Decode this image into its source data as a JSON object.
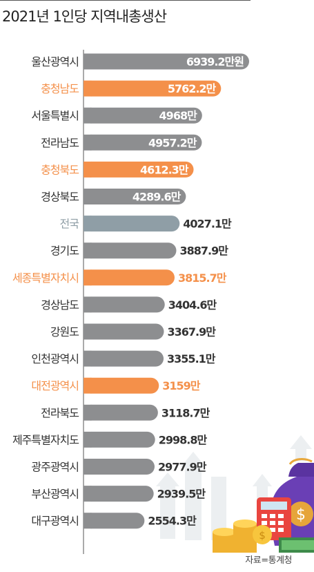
{
  "title": "2021년 1인당 지역내총생산",
  "source": "자료=통계청",
  "colors": {
    "gray": "#8d8e90",
    "orange": "#f4904a",
    "national": "#8f9ea6",
    "label_dark": "#333333",
    "value_light": "#ffffff",
    "value_dark": "#333333"
  },
  "chart_data": {
    "type": "bar",
    "orientation": "horizontal",
    "unit": "만원",
    "categories": [
      "울산광역시",
      "충청남도",
      "서울특별시",
      "전라남도",
      "충청북도",
      "경상북도",
      "전국",
      "경기도",
      "세종특별자치시",
      "경상남도",
      "강원도",
      "인천광역시",
      "대전광역시",
      "전라북도",
      "제주특별자치도",
      "광주광역시",
      "부산광역시",
      "대구광역시"
    ],
    "values": [
      6939.2,
      5762.2,
      4968,
      4957.2,
      4612.3,
      4289.6,
      4027.1,
      3887.9,
      3815.7,
      3404.6,
      3367.9,
      3355.1,
      3159,
      3118.7,
      2998.8,
      2977.9,
      2939.5,
      2554.3
    ],
    "value_labels": [
      "6939.2만원",
      "5762.2만",
      "4968만",
      "4957.2만",
      "4612.3만",
      "4289.6만",
      "4027.1만",
      "3887.9만",
      "3815.7만",
      "3404.6만",
      "3367.9만",
      "3355.1만",
      "3159만",
      "3118.7만",
      "2998.8만",
      "2977.9만",
      "2939.5만",
      "2554.3만"
    ],
    "highlight": [
      "gray",
      "orange",
      "gray",
      "gray",
      "orange",
      "gray",
      "national",
      "gray",
      "orange",
      "gray",
      "gray",
      "gray",
      "orange",
      "gray",
      "gray",
      "gray",
      "gray",
      "gray"
    ],
    "xlim": [
      0,
      7100
    ]
  }
}
